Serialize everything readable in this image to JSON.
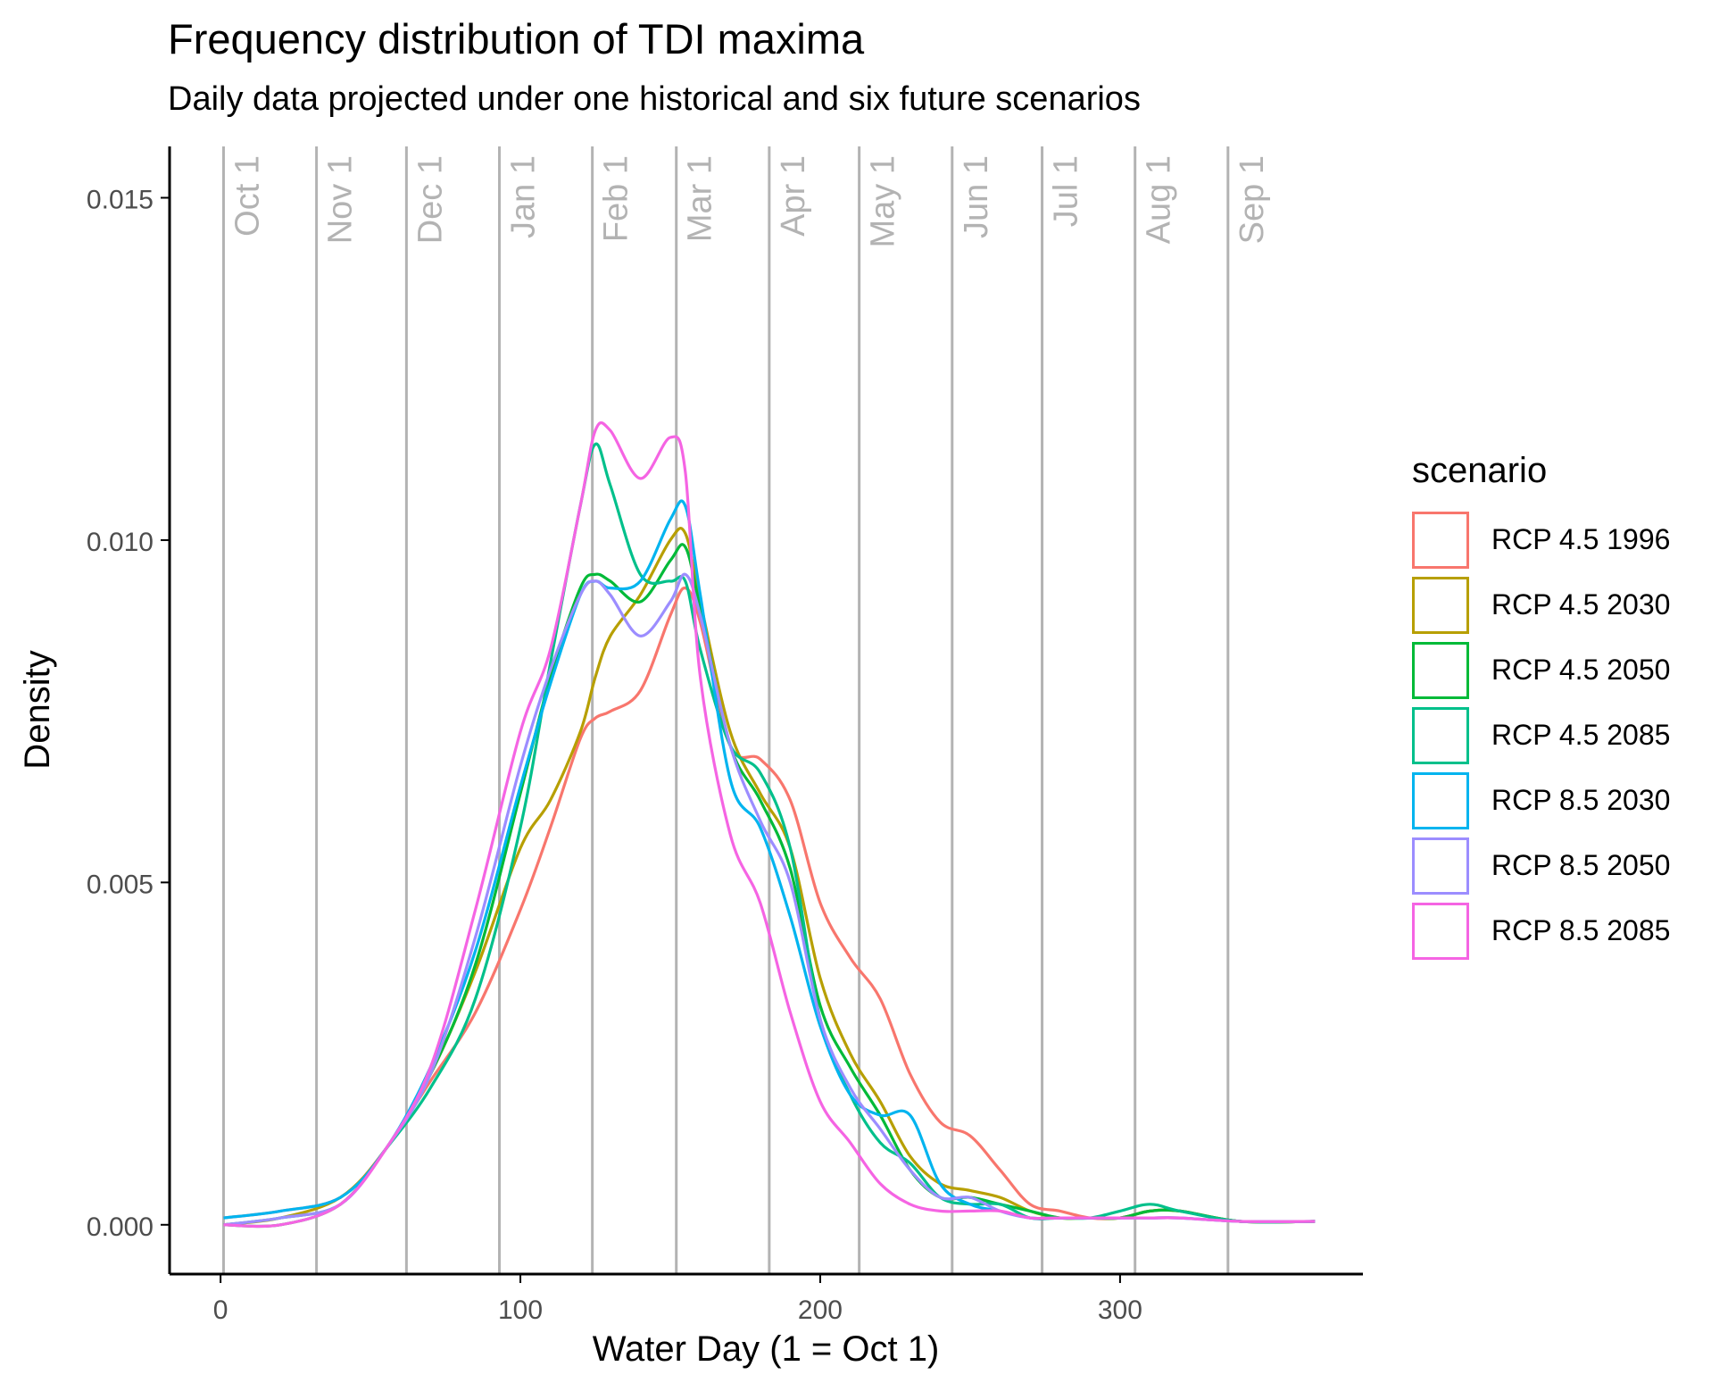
{
  "chart_data": {
    "type": "line",
    "title": "Frequency distribution of TDI maxima",
    "subtitle": "Daily data projected under one historical and six future scenarios",
    "xlabel": "Water Day (1 = Oct 1)",
    "ylabel": "Density",
    "xlim": [
      -17,
      381
    ],
    "ylim": [
      -0.00072,
      0.01575
    ],
    "x_ticks": [
      0,
      100,
      200,
      300
    ],
    "x_tick_labels": [
      "0",
      "100",
      "200",
      "300"
    ],
    "y_ticks": [
      0,
      0.005,
      0.01,
      0.015
    ],
    "y_tick_labels": [
      "0.000",
      "0.005",
      "0.010",
      "0.015"
    ],
    "grid": false,
    "legend": {
      "title": "scenario",
      "position": "right"
    },
    "month_markers": [
      {
        "day": 1,
        "label": "Oct 1"
      },
      {
        "day": 32,
        "label": "Nov 1"
      },
      {
        "day": 62,
        "label": "Dec 1"
      },
      {
        "day": 93,
        "label": "Jan 1"
      },
      {
        "day": 124,
        "label": "Feb 1"
      },
      {
        "day": 152,
        "label": "Mar 1"
      },
      {
        "day": 183,
        "label": "Apr 1"
      },
      {
        "day": 213,
        "label": "May 1"
      },
      {
        "day": 244,
        "label": "Jun 1"
      },
      {
        "day": 274,
        "label": "Jul 1"
      },
      {
        "day": 305,
        "label": "Aug 1"
      },
      {
        "day": 336,
        "label": "Sep 1"
      }
    ],
    "marker_color": "#b3b3b3",
    "x": [
      1,
      20,
      40,
      55,
      70,
      85,
      100,
      110,
      120,
      125,
      130,
      140,
      150,
      155,
      160,
      170,
      180,
      190,
      200,
      210,
      220,
      230,
      240,
      250,
      260,
      270,
      280,
      290,
      300,
      310,
      320,
      340,
      365
    ],
    "series": [
      {
        "name": "RCP 4.5 1996",
        "color": "#F8766D",
        "values": [
          0.0001,
          0.0002,
          0.0004,
          0.0011,
          0.0021,
          0.0031,
          0.0046,
          0.0058,
          0.0071,
          0.0074,
          0.0075,
          0.0078,
          0.0089,
          0.0093,
          0.0088,
          0.007,
          0.0068,
          0.0062,
          0.0047,
          0.0039,
          0.0033,
          0.0022,
          0.0015,
          0.0013,
          0.0008,
          0.0003,
          0.0002,
          0.0001,
          0.0001,
          0.0002,
          0.0002,
          5e-05,
          5e-05
        ]
      },
      {
        "name": "RCP 4.5 2030",
        "color": "#B79F00",
        "values": [
          0.0,
          0.0001,
          0.0004,
          0.0011,
          0.0022,
          0.0037,
          0.0055,
          0.0062,
          0.0072,
          0.008,
          0.0086,
          0.0092,
          0.01,
          0.0101,
          0.0091,
          0.0072,
          0.0063,
          0.0055,
          0.0036,
          0.0025,
          0.0018,
          0.001,
          0.0006,
          0.0005,
          0.0004,
          0.0002,
          0.0001,
          0.0001,
          0.0001,
          0.0002,
          0.0002,
          5e-05,
          5e-05
        ]
      },
      {
        "name": "RCP 4.5 2050",
        "color": "#00BA38",
        "values": [
          0.0,
          0.0,
          0.0003,
          0.0011,
          0.0022,
          0.0038,
          0.0063,
          0.008,
          0.0093,
          0.0095,
          0.0094,
          0.0091,
          0.0097,
          0.0099,
          0.009,
          0.007,
          0.0062,
          0.0052,
          0.0032,
          0.0023,
          0.0016,
          0.0008,
          0.0004,
          0.0004,
          0.0003,
          0.0002,
          0.0001,
          0.0001,
          0.0001,
          0.0002,
          0.0002,
          5e-05,
          5e-05
        ]
      },
      {
        "name": "RCP 4.5 2085",
        "color": "#00C08B",
        "values": [
          0.0,
          0.0001,
          0.0003,
          0.0011,
          0.002,
          0.0033,
          0.0058,
          0.0082,
          0.0105,
          0.0114,
          0.0108,
          0.0095,
          0.0094,
          0.0094,
          0.0084,
          0.007,
          0.0066,
          0.0055,
          0.003,
          0.0019,
          0.0012,
          0.0009,
          0.0004,
          0.0003,
          0.0003,
          0.0001,
          0.0001,
          0.0001,
          0.0002,
          0.0003,
          0.0002,
          5e-05,
          5e-05
        ]
      },
      {
        "name": "RCP 8.5 2030",
        "color": "#00B4EF",
        "values": [
          0.0001,
          0.0002,
          0.0004,
          0.0011,
          0.0023,
          0.004,
          0.0064,
          0.0079,
          0.0092,
          0.0094,
          0.0093,
          0.0094,
          0.0103,
          0.0105,
          0.0092,
          0.0065,
          0.0058,
          0.0045,
          0.0029,
          0.0019,
          0.0016,
          0.0016,
          0.0006,
          0.0003,
          0.0002,
          0.0001,
          0.0001,
          0.0001,
          0.0001,
          0.0001,
          0.0001,
          5e-05,
          5e-05
        ]
      },
      {
        "name": "RCP 8.5 2050",
        "color": "#9C8DFF",
        "values": [
          0.0,
          0.0001,
          0.0003,
          0.0011,
          0.0022,
          0.0042,
          0.0067,
          0.0081,
          0.0092,
          0.0094,
          0.0092,
          0.0086,
          0.0091,
          0.0095,
          0.0089,
          0.007,
          0.0059,
          0.005,
          0.003,
          0.002,
          0.0014,
          0.0008,
          0.0004,
          0.0004,
          0.0002,
          0.0001,
          0.0001,
          0.0001,
          0.0001,
          0.0001,
          0.0001,
          5e-05,
          5e-05
        ]
      },
      {
        "name": "RCP 8.5 2085",
        "color": "#F564E3",
        "values": [
          0.0,
          0.0,
          0.0003,
          0.0011,
          0.0023,
          0.0046,
          0.0072,
          0.0084,
          0.0105,
          0.0116,
          0.0116,
          0.0109,
          0.0115,
          0.011,
          0.008,
          0.0057,
          0.0047,
          0.0031,
          0.0018,
          0.0012,
          0.0006,
          0.0003,
          0.0002,
          0.0002,
          0.0002,
          0.0001,
          0.0001,
          0.0001,
          0.0001,
          0.0001,
          0.0001,
          5e-05,
          5e-05
        ]
      }
    ]
  }
}
